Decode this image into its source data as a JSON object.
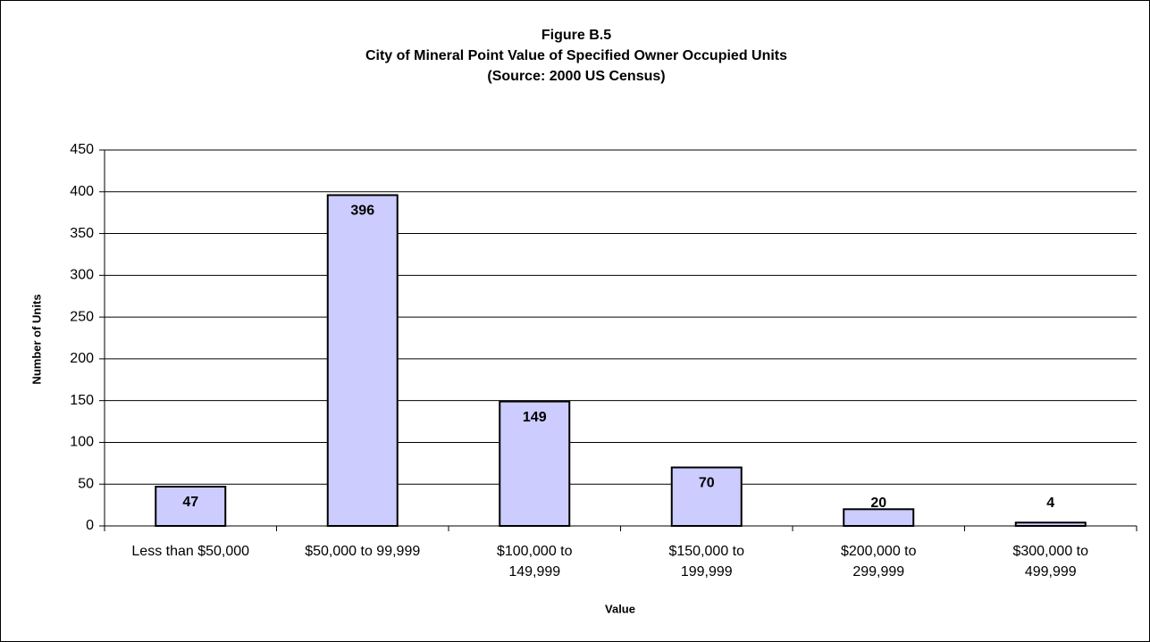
{
  "chart_data": {
    "type": "bar",
    "title": [
      "Figure B.5",
      "City of Mineral Point Value of Specified Owner Occupied Units",
      "(Source:  2000 US Census)"
    ],
    "x_label": "Value",
    "y_label": "Number of Units",
    "categories": [
      [
        "Less than $50,000"
      ],
      [
        "$50,000 to 99,999"
      ],
      [
        "$100,000 to",
        "149,999"
      ],
      [
        "$150,000 to",
        "199,999"
      ],
      [
        "$200,000 to",
        "299,999"
      ],
      [
        "$300,000 to",
        "499,999"
      ]
    ],
    "values": [
      47,
      396,
      149,
      70,
      20,
      4
    ],
    "color": "#ccccff",
    "ylim": [
      0,
      450
    ],
    "yticks": [
      0,
      50,
      100,
      150,
      200,
      250,
      300,
      350,
      400,
      450
    ],
    "grid": true
  }
}
